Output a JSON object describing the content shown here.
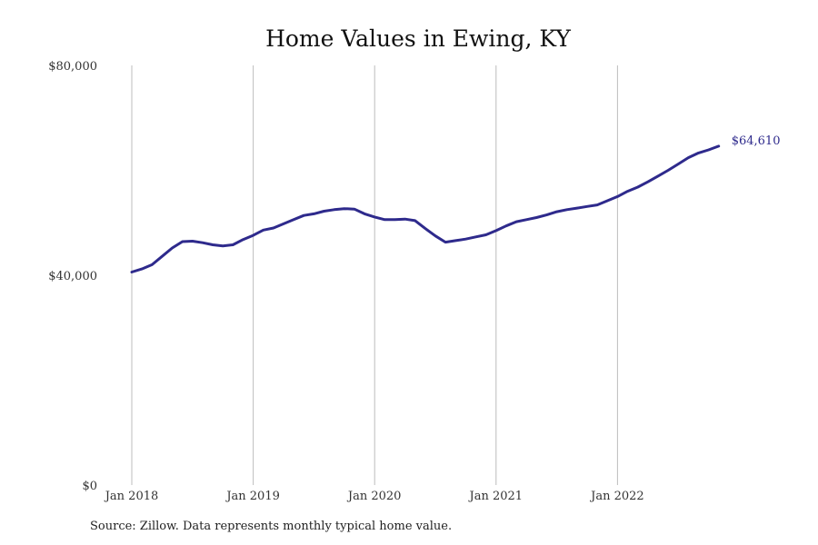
{
  "chart_data": {
    "type": "line",
    "title": "Home Values in Ewing, KY",
    "xlabel": "",
    "ylabel": "",
    "ylim": [
      0,
      80000
    ],
    "y_ticks": [
      {
        "value": 0,
        "label": "$0"
      },
      {
        "value": 40000,
        "label": "$40,000"
      },
      {
        "value": 80000,
        "label": "$80,000"
      }
    ],
    "x_ticks": [
      {
        "label": "Jan 2018",
        "date": "2018-01"
      },
      {
        "label": "Jan 2019",
        "date": "2019-01"
      },
      {
        "label": "Jan 2020",
        "date": "2020-01"
      },
      {
        "label": "Jan 2021",
        "date": "2021-01"
      },
      {
        "label": "Jan 2022",
        "date": "2022-01"
      }
    ],
    "grid": "vertical",
    "series": [
      {
        "color": "#2e2a8c",
        "end_label": "$64,610",
        "points": [
          [
            "2018-01",
            40600
          ],
          [
            "2018-02",
            41200
          ],
          [
            "2018-03",
            42000
          ],
          [
            "2018-04",
            43600
          ],
          [
            "2018-05",
            45200
          ],
          [
            "2018-06",
            46400
          ],
          [
            "2018-07",
            46500
          ],
          [
            "2018-08",
            46200
          ],
          [
            "2018-09",
            45800
          ],
          [
            "2018-10",
            45600
          ],
          [
            "2018-11",
            45800
          ],
          [
            "2018-12",
            46800
          ],
          [
            "2019-01",
            47600
          ],
          [
            "2019-02",
            48600
          ],
          [
            "2019-03",
            49000
          ],
          [
            "2019-04",
            49800
          ],
          [
            "2019-05",
            50600
          ],
          [
            "2019-06",
            51400
          ],
          [
            "2019-07",
            51700
          ],
          [
            "2019-08",
            52200
          ],
          [
            "2019-09",
            52500
          ],
          [
            "2019-10",
            52700
          ],
          [
            "2019-11",
            52600
          ],
          [
            "2019-12",
            51700
          ],
          [
            "2020-01",
            51100
          ],
          [
            "2020-02",
            50600
          ],
          [
            "2020-03",
            50600
          ],
          [
            "2020-04",
            50700
          ],
          [
            "2020-05",
            50400
          ],
          [
            "2020-06",
            48900
          ],
          [
            "2020-07",
            47500
          ],
          [
            "2020-08",
            46300
          ],
          [
            "2020-09",
            46600
          ],
          [
            "2020-10",
            46900
          ],
          [
            "2020-11",
            47300
          ],
          [
            "2020-12",
            47700
          ],
          [
            "2021-01",
            48500
          ],
          [
            "2021-02",
            49400
          ],
          [
            "2021-03",
            50200
          ],
          [
            "2021-04",
            50600
          ],
          [
            "2021-05",
            51000
          ],
          [
            "2021-06",
            51500
          ],
          [
            "2021-07",
            52100
          ],
          [
            "2021-08",
            52500
          ],
          [
            "2021-09",
            52800
          ],
          [
            "2021-10",
            53100
          ],
          [
            "2021-11",
            53400
          ],
          [
            "2021-12",
            54200
          ],
          [
            "2022-01",
            55000
          ],
          [
            "2022-02",
            56000
          ],
          [
            "2022-03",
            56800
          ],
          [
            "2022-04",
            57800
          ],
          [
            "2022-05",
            58900
          ],
          [
            "2022-06",
            60000
          ],
          [
            "2022-07",
            61200
          ],
          [
            "2022-08",
            62400
          ],
          [
            "2022-09",
            63300
          ],
          [
            "2022-10",
            63900
          ],
          [
            "2022-11",
            64610
          ]
        ]
      }
    ]
  },
  "source_note": "Source: Zillow. Data represents monthly typical home value."
}
